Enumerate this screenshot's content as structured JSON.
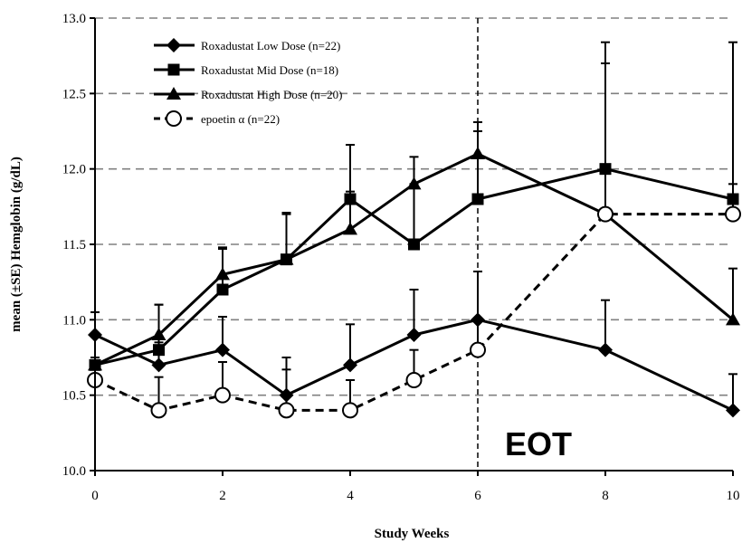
{
  "chart_data": {
    "type": "line",
    "xlabel": "Study Weeks",
    "ylabel": "mean (±SE) Hemglobin (g/dL)",
    "xlim": [
      0,
      10
    ],
    "ylim": [
      10.0,
      13.0
    ],
    "xticks": [
      0,
      2,
      4,
      6,
      8,
      10
    ],
    "xtick_labels": [
      "0",
      "2",
      "4",
      "6",
      "8",
      "10"
    ],
    "yticks": [
      10.0,
      10.5,
      11.0,
      11.5,
      12.0,
      12.5,
      13.0
    ],
    "ytick_labels": [
      "10.0",
      "10.5",
      "11.0",
      "11.5",
      "12.0",
      "12.5",
      "13.0"
    ],
    "grid": "horizontal dashed",
    "legend_position": "top-left",
    "annotation": {
      "text": "EOT",
      "x": 6
    },
    "series": [
      {
        "name": "Roxadustat Low Dose (n=22)",
        "marker": "diamond",
        "line": "solid",
        "x": [
          0,
          1,
          2,
          3,
          4,
          5,
          6,
          8,
          10
        ],
        "y": [
          10.9,
          10.7,
          10.8,
          10.5,
          10.7,
          10.9,
          11.0,
          10.8,
          10.4
        ],
        "se": [
          0.15,
          0.15,
          0.22,
          0.25,
          0.27,
          0.3,
          0.32,
          0.33,
          0.24
        ]
      },
      {
        "name": "Roxadustat Mid Dose (n=18)",
        "marker": "square",
        "line": "solid",
        "x": [
          0,
          1,
          2,
          3,
          4,
          5,
          6,
          8,
          10
        ],
        "y": [
          10.7,
          10.8,
          11.2,
          11.4,
          11.8,
          11.5,
          11.8,
          12.0,
          11.8
        ],
        "se": [
          0.2,
          0.3,
          0.27,
          0.3,
          0.36,
          0.4,
          0.45,
          0.84,
          1.04
        ]
      },
      {
        "name": "Roxadustat High Dose (n=20)",
        "marker": "triangle",
        "line": "solid",
        "x": [
          0,
          1,
          2,
          3,
          4,
          5,
          6,
          8,
          10
        ],
        "y": [
          10.7,
          10.9,
          11.3,
          11.4,
          11.6,
          11.9,
          12.1,
          11.7,
          11.0
        ],
        "se": [
          0.2,
          0.2,
          0.18,
          0.31,
          0.25,
          0.18,
          0.21,
          1.0,
          0.34
        ]
      },
      {
        "name": "epoetin α (n=22)",
        "marker": "open-circle",
        "line": "dashed",
        "x": [
          0,
          1,
          2,
          3,
          4,
          5,
          6,
          8,
          10
        ],
        "y": [
          10.6,
          10.4,
          10.5,
          10.4,
          10.4,
          10.6,
          10.8,
          11.7,
          11.7
        ],
        "se": [
          0.15,
          0.22,
          0.22,
          0.27,
          0.2,
          0.2,
          0.2,
          1.0,
          0.2
        ]
      }
    ]
  }
}
